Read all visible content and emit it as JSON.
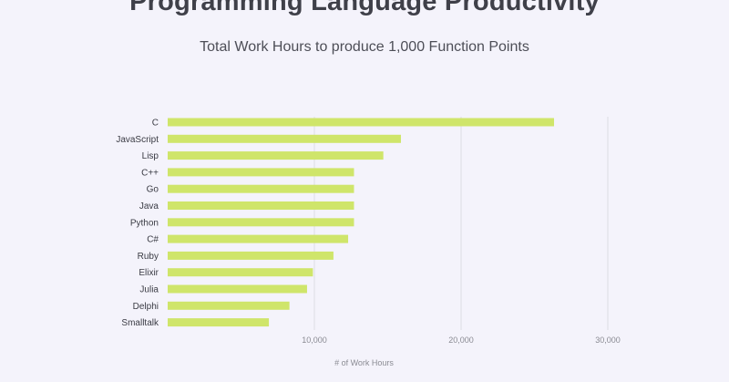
{
  "chart_data": {
    "type": "bar",
    "orientation": "horizontal",
    "title": "Programming Language Productivity",
    "subtitle": "Total Work Hours to produce 1,000 Function Points",
    "xlabel": "# of Work Hours",
    "ylabel": "",
    "categories": [
      "C",
      "JavaScript",
      "Lisp",
      "C++",
      "Go",
      "Java",
      "Python",
      "C#",
      "Ruby",
      "Elixir",
      "Julia",
      "Delphi",
      "Smalltalk"
    ],
    "values": [
      26336,
      15900,
      14700,
      12700,
      12700,
      12700,
      12700,
      12300,
      11300,
      9900,
      9500,
      8300,
      6900
    ],
    "xlim": [
      0,
      30000
    ],
    "xticks": [
      10000,
      20000,
      30000
    ],
    "xtick_labels": [
      "10,000",
      "20,000",
      "30,000"
    ],
    "grid": true,
    "legend": "none",
    "bar_color": "#cfe56a",
    "grid_color": "#dcdce3"
  }
}
